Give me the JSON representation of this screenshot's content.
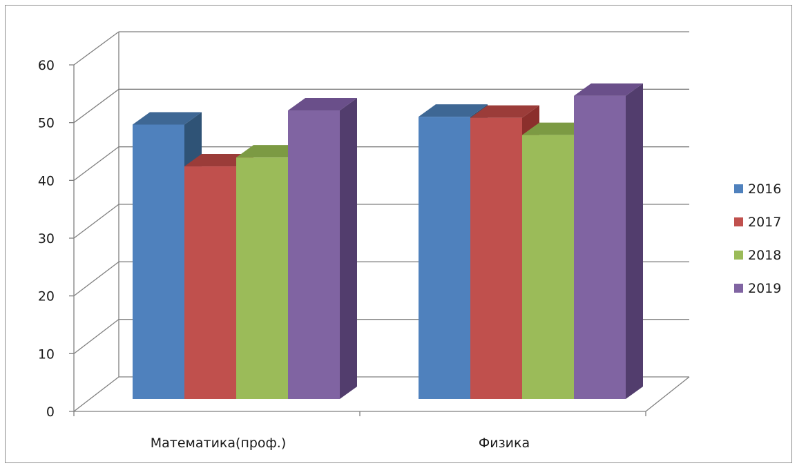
{
  "chart_data": {
    "type": "bar",
    "categories": [
      "Математика(проф.)",
      "Физика"
    ],
    "series": [
      {
        "name": "2016",
        "values": [
          52.5,
          54
        ],
        "colors": {
          "front": "#4f81bd",
          "top": "#3e6794",
          "side": "#2f5376"
        }
      },
      {
        "name": "2017",
        "values": [
          44.5,
          53.8
        ],
        "colors": {
          "front": "#c0504d",
          "top": "#9b3c39",
          "side": "#8b2f2c"
        }
      },
      {
        "name": "2018",
        "values": [
          46.2,
          50.5
        ],
        "colors": {
          "front": "#9bbb59",
          "top": "#7c9a43",
          "side": "#6b8638"
        }
      },
      {
        "name": "2019",
        "values": [
          55.2,
          58
        ],
        "colors": {
          "front": "#8064a2",
          "top": "#6a4f8a",
          "side": "#523d6d"
        }
      }
    ],
    "ylim": [
      0,
      60
    ],
    "yticks": [
      "0",
      "10",
      "20",
      "30",
      "40",
      "50",
      "60"
    ],
    "grid": true,
    "legend_position": "right",
    "wall_color": "#7f7f7f"
  }
}
